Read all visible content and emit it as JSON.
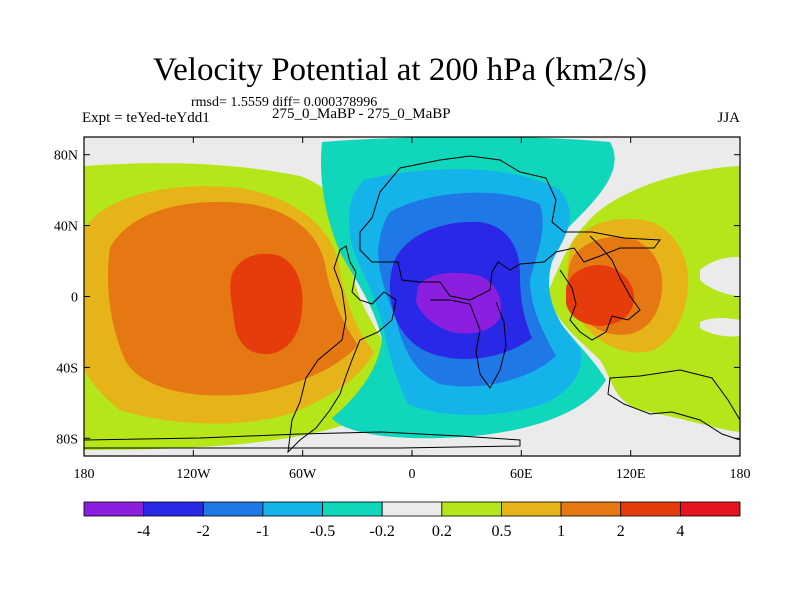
{
  "header": {
    "title": "Velocity Potential at 200 hPa (km2/s)",
    "stats": "rmsd= 1.5559 diff= 0.000378996",
    "experiment": "Expt = teYed-teYdd1",
    "subtitle": "275_0_MaBP - 275_0_MaBP",
    "season": "JJA"
  },
  "chart_data": {
    "type": "heatmap",
    "title": "Velocity Potential at 200 hPa (km2/s)",
    "units": "km2/s",
    "x_axis": {
      "range": [
        -180,
        180
      ],
      "ticks": [
        -180,
        -120,
        -60,
        0,
        60,
        120,
        180
      ],
      "tick_labels": [
        "180",
        "120W",
        "60W",
        "0",
        "60E",
        "120E",
        "180"
      ]
    },
    "y_axis": {
      "range": [
        -90,
        90
      ],
      "ticks": [
        80,
        40,
        0,
        -40,
        -80
      ],
      "tick_labels": [
        "80N",
        "40N",
        "0",
        "40S",
        "80S"
      ]
    },
    "colorbar": {
      "levels": [
        -4,
        -2,
        -1,
        -0.5,
        -0.2,
        0.2,
        0.5,
        1,
        2,
        4
      ],
      "level_labels": [
        "-4",
        "-2",
        "-1",
        "-0.5",
        "-0.2",
        "0.2",
        "0.5",
        "1",
        "2",
        "4"
      ],
      "colors": [
        "#8c1ee0",
        "#2828e6",
        "#1e78e6",
        "#14b4eb",
        "#10d7bb",
        "#ebebeb",
        "#b4e619",
        "#e6b419",
        "#e67814",
        "#e63c0c",
        "#e6141e"
      ]
    },
    "features": [
      {
        "name": "Negative center (Asia / Indian Ocean)",
        "lon": 30,
        "lat": 0,
        "min_level": "< -4"
      },
      {
        "name": "Positive center (central Pacific)",
        "lon": -95,
        "lat": -5,
        "max_level": "2 to 4"
      },
      {
        "name": "Positive center (western Pacific)",
        "lon": 110,
        "lat": 5,
        "max_level": "2 to 4"
      }
    ]
  }
}
